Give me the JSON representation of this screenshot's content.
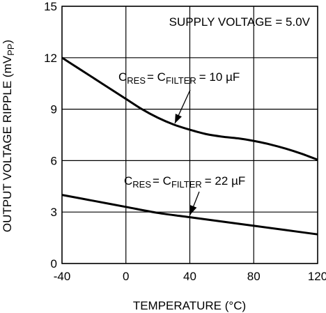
{
  "chart_data": {
    "type": "line",
    "xlabel": "TEMPERATURE (°C)",
    "ylabel": "OUTPUT VOLTAGE RIPPLE (mV",
    "ylabel_sub": "PP",
    "ylabel_close": ")",
    "xlim": [
      -40,
      120
    ],
    "ylim": [
      0,
      15
    ],
    "x_ticks": [
      -40,
      0,
      40,
      80,
      120
    ],
    "y_ticks": [
      0,
      3,
      6,
      9,
      12,
      15
    ],
    "grid": true,
    "annotation": "SUPPLY VOLTAGE = 5.0V",
    "series": [
      {
        "label": {
          "c1": "C",
          "s1": "RES",
          "eq1": "= C",
          "s2": "FILTER",
          "rest": "= 10 µF"
        },
        "x": [
          -40,
          -30,
          -20,
          -10,
          0,
          10,
          20,
          30,
          40,
          50,
          60,
          70,
          80,
          90,
          100,
          110,
          120
        ],
        "y": [
          12.0,
          11.4,
          10.8,
          10.2,
          9.6,
          9.0,
          8.5,
          8.1,
          7.8,
          7.55,
          7.4,
          7.3,
          7.15,
          6.95,
          6.7,
          6.4,
          6.05
        ]
      },
      {
        "label": {
          "c1": "C",
          "s1": "RES",
          "eq1": "= C",
          "s2": "FILTER",
          "rest": "= 22 µF"
        },
        "x": [
          -40,
          -20,
          0,
          20,
          40,
          60,
          80,
          100,
          120
        ],
        "y": [
          4.0,
          3.65,
          3.3,
          2.95,
          2.7,
          2.45,
          2.2,
          1.95,
          1.7
        ]
      }
    ]
  }
}
